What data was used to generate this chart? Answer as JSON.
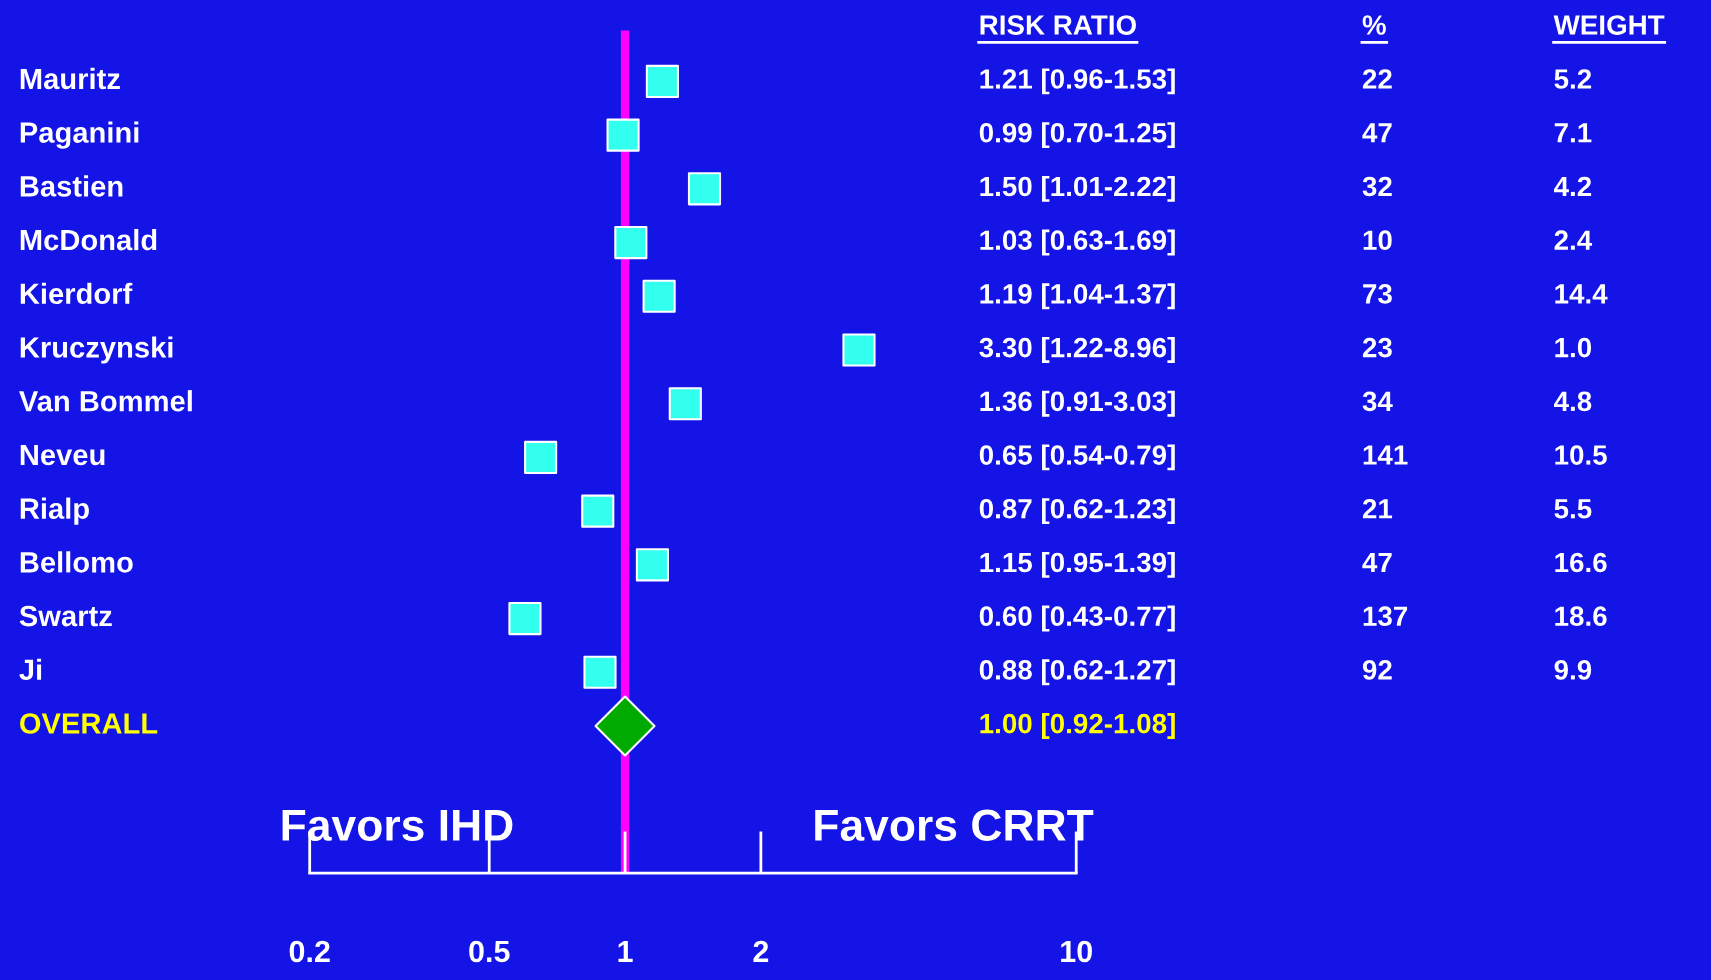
{
  "chart_data": {
    "type": "scatter",
    "orientation": "horizontal",
    "log": "x",
    "categories": [
      "Mauritz",
      "Paganini",
      "Bastien",
      "McDonald",
      "Kierdorf",
      "Kruczynski",
      "Van Bommel",
      "Neveu",
      "Rialp",
      "Bellomo",
      "Swartz",
      "Ji",
      "OVERALL"
    ],
    "series": [
      {
        "color": "#33ffee",
        "marker": "square",
        "values": [
          1.21,
          0.99,
          1.5,
          1.03,
          1.19,
          3.3,
          1.36,
          0.65,
          0.87,
          1.15,
          0.6,
          0.88,
          null
        ]
      },
      {
        "color": "#00aa00",
        "marker": "diamond",
        "values": [
          null,
          null,
          null,
          null,
          null,
          null,
          null,
          null,
          null,
          null,
          null,
          null,
          1.0
        ]
      }
    ],
    "xlim": [
      0.2,
      10
    ],
    "xticks": [
      0.2,
      0.5,
      1,
      2,
      10
    ],
    "ref_lines": [
      {
        "axis": "x",
        "value": 1,
        "color": "#ff00ff"
      }
    ],
    "annotations": [
      "RISK RATIO",
      "%",
      "WEIGHT",
      "1.21 [0.96-1.53]",
      "22",
      "5.2",
      "0.99 [0.70-1.25]",
      "47",
      "7.1",
      "1.50 [1.01-2.22]",
      "32",
      "4.2",
      "1.03 [0.63-1.69]",
      "10",
      "2.4",
      "1.19 [1.04-1.37]",
      "73",
      "14.4",
      "3.30 [1.22-8.96]",
      "23",
      "1.0",
      "1.36 [0.91-3.03]",
      "34",
      "4.8",
      "0.65 [0.54-0.79]",
      "141",
      "10.5",
      "0.87 [0.62-1.23]",
      "21",
      "5.5",
      "1.15 [0.95-1.39]",
      "47",
      "16.6",
      "0.60 [0.43-0.77]",
      "137",
      "18.6",
      "0.88 [0.62-1.27]",
      "92",
      "9.9",
      "1.00 [0.92-1.08]",
      "Favors IHD",
      "Favors CRRT"
    ],
    "grid": false,
    "legend": false
  }
}
